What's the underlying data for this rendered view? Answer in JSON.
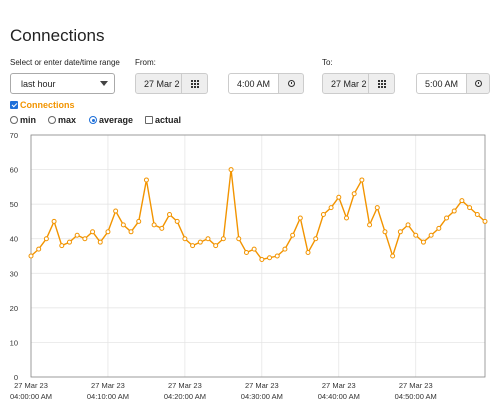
{
  "page": {
    "title": "Connections"
  },
  "range": {
    "label": "Select or enter date/time range",
    "selected": "last hour"
  },
  "from": {
    "label": "From:",
    "date": "27 Mar 2",
    "time": "4:00 AM"
  },
  "to": {
    "label": "To:",
    "date": "27 Mar 2",
    "time": "5:00 AM"
  },
  "series_toggle": {
    "label": "Connections",
    "checked": true,
    "color": "#f29400"
  },
  "options": {
    "min": "min",
    "max": "max",
    "average": "average",
    "actual": "actual",
    "selected": "average"
  },
  "icons": {
    "calendar": "calendar-icon",
    "clock": "clock-icon",
    "dropdown": "chevron-down-icon"
  },
  "chart_data": {
    "type": "line",
    "title": "",
    "xlabel": "",
    "ylabel": "",
    "ylim": [
      0,
      70
    ],
    "yticks": [
      0,
      10,
      20,
      30,
      40,
      50,
      60,
      70
    ],
    "xlim_minutes": [
      0,
      59
    ],
    "xticks": [
      {
        "minute": 0,
        "date": "27 Mar 23",
        "time": "04:00:00 AM"
      },
      {
        "minute": 10,
        "date": "27 Mar 23",
        "time": "04:10:00 AM"
      },
      {
        "minute": 20,
        "date": "27 Mar 23",
        "time": "04:20:00 AM"
      },
      {
        "minute": 30,
        "date": "27 Mar 23",
        "time": "04:30:00 AM"
      },
      {
        "minute": 40,
        "date": "27 Mar 23",
        "time": "04:40:00 AM"
      },
      {
        "minute": 50,
        "date": "27 Mar 23",
        "time": "04:50:00 AM"
      }
    ],
    "grid": true,
    "series": [
      {
        "name": "Connections",
        "color": "#f29400",
        "x_minutes": [
          0,
          1,
          2,
          3,
          4,
          5,
          6,
          7,
          8,
          9,
          10,
          11,
          12,
          13,
          14,
          15,
          16,
          17,
          18,
          19,
          20,
          21,
          22,
          23,
          24,
          25,
          26,
          27,
          28,
          29,
          30,
          31,
          32,
          33,
          34,
          35,
          36,
          37,
          38,
          39,
          40,
          41,
          42,
          43,
          44,
          45,
          46,
          47,
          48,
          49,
          50,
          51,
          52,
          53,
          54,
          55,
          56,
          57,
          58,
          59
        ],
        "values": [
          35,
          37,
          40,
          45,
          38,
          39,
          41,
          40,
          42,
          39,
          42,
          48,
          44,
          42,
          45,
          57,
          44,
          43,
          47,
          45,
          40,
          38,
          39,
          40,
          38,
          40,
          60,
          40,
          36,
          37,
          34,
          34.5,
          35,
          37,
          41,
          46,
          36,
          40,
          47,
          49,
          52,
          46,
          53,
          57,
          44,
          49,
          42,
          35,
          42,
          44,
          41,
          39,
          41,
          43,
          46,
          48,
          51,
          49,
          47,
          45
        ]
      }
    ]
  }
}
